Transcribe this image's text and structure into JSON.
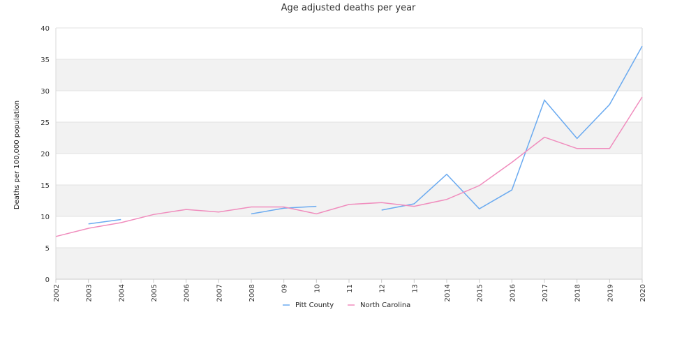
{
  "chart_data": {
    "type": "line",
    "title": "Age adjusted deaths per year",
    "xlabel": "",
    "ylabel": "Deaths per 100,000 population",
    "ylim": [
      0,
      40
    ],
    "yticks": [
      0,
      5,
      10,
      15,
      20,
      25,
      30,
      35,
      40
    ],
    "x_tick_labels": [
      "2002",
      "2003",
      "2004",
      "2005",
      "2006",
      "2007",
      "2008",
      "09",
      "10",
      "11",
      "12",
      "13",
      "2014",
      "2015",
      "2016",
      "2017",
      "2018",
      "2019",
      "2020"
    ],
    "grid": "horizontal alternating bands",
    "legend_position": "bottom",
    "series": [
      {
        "name": "Pitt County",
        "color": "#6aaaf0",
        "values": [
          null,
          8.8,
          9.5,
          null,
          null,
          null,
          10.4,
          11.3,
          11.6,
          null,
          11.0,
          12.0,
          16.7,
          11.2,
          14.2,
          28.5,
          22.4,
          27.8,
          37.1
        ]
      },
      {
        "name": "North Carolina",
        "color": "#f08cbd",
        "values": [
          6.8,
          8.1,
          9.0,
          10.3,
          11.1,
          10.7,
          11.5,
          11.5,
          10.4,
          11.9,
          12.2,
          11.6,
          12.7,
          14.9,
          18.6,
          22.6,
          20.8,
          20.8,
          29.0
        ]
      }
    ]
  }
}
